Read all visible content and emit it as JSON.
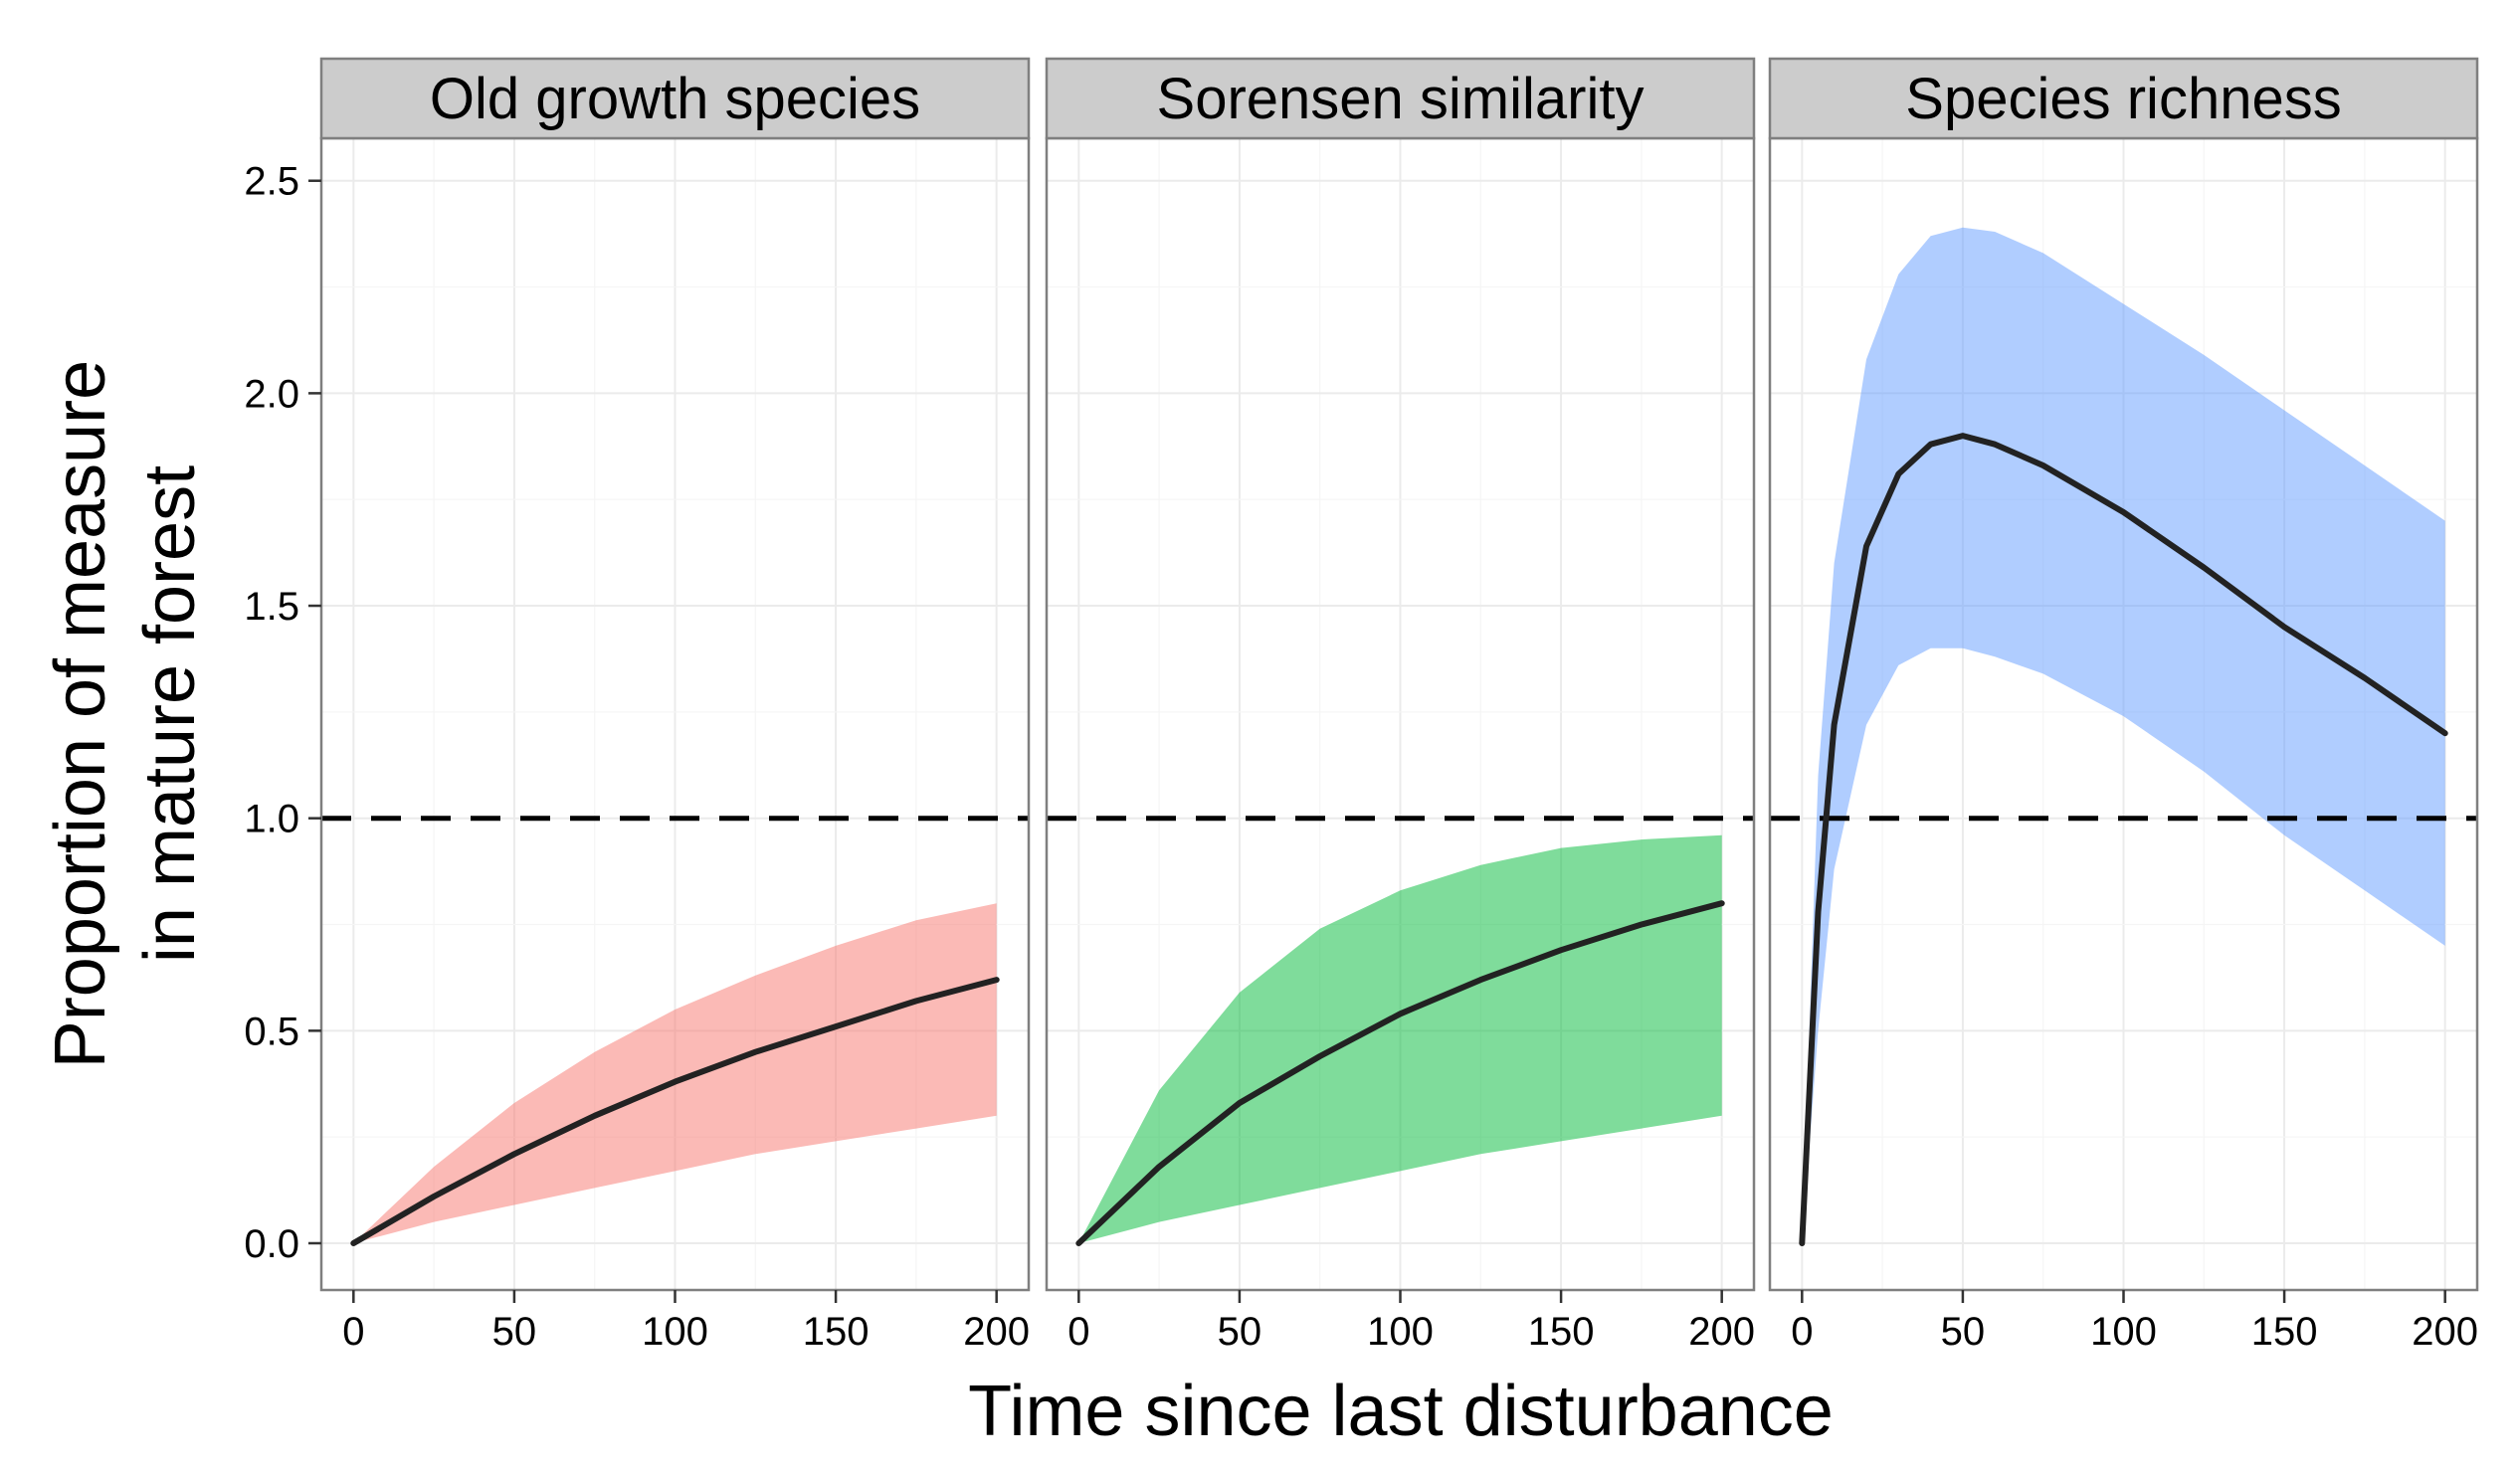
{
  "chart_data": {
    "type": "area",
    "xlabel": "Time since last disturbance",
    "ylabel": [
      "Proportion of measure",
      "in mature forest"
    ],
    "xlim": [
      -10,
      210
    ],
    "ylim": [
      -0.11,
      2.6
    ],
    "x_ticks": [
      0,
      50,
      100,
      150,
      200
    ],
    "y_ticks": [
      0.0,
      0.5,
      1.0,
      1.5,
      2.0,
      2.5
    ],
    "y_tick_labels": [
      "0.0",
      "0.5",
      "1.0",
      "1.5",
      "2.0",
      "2.5"
    ],
    "reference_line": {
      "y": 1.0,
      "style": "dashed",
      "color": "#000000"
    },
    "grid": true,
    "panels": [
      {
        "title": "Old growth species",
        "color": "#F8766D",
        "x": [
          0,
          25,
          50,
          75,
          100,
          125,
          150,
          175,
          200
        ],
        "mean": [
          0.0,
          0.11,
          0.21,
          0.3,
          0.38,
          0.45,
          0.51,
          0.57,
          0.62
        ],
        "lower": [
          0.0,
          0.05,
          0.09,
          0.13,
          0.17,
          0.21,
          0.24,
          0.27,
          0.3
        ],
        "upper": [
          0.0,
          0.18,
          0.33,
          0.45,
          0.55,
          0.63,
          0.7,
          0.76,
          0.8
        ]
      },
      {
        "title": "Sorensen similarity",
        "color": "#00BA38",
        "x": [
          0,
          25,
          50,
          75,
          100,
          125,
          150,
          175,
          200
        ],
        "mean": [
          0.0,
          0.18,
          0.33,
          0.44,
          0.54,
          0.62,
          0.69,
          0.75,
          0.8
        ],
        "lower": [
          0.0,
          0.05,
          0.09,
          0.13,
          0.17,
          0.21,
          0.24,
          0.27,
          0.3
        ],
        "upper": [
          0.0,
          0.36,
          0.59,
          0.74,
          0.83,
          0.89,
          0.93,
          0.95,
          0.96
        ]
      },
      {
        "title": "Species richness",
        "color": "#619CFF",
        "x": [
          0,
          5,
          10,
          20,
          30,
          40,
          50,
          60,
          75,
          100,
          125,
          150,
          175,
          200
        ],
        "mean": [
          0.0,
          0.78,
          1.22,
          1.64,
          1.81,
          1.88,
          1.9,
          1.88,
          1.83,
          1.72,
          1.59,
          1.45,
          1.33,
          1.2
        ],
        "lower": [
          0.0,
          0.5,
          0.88,
          1.22,
          1.36,
          1.4,
          1.4,
          1.38,
          1.34,
          1.24,
          1.11,
          0.96,
          0.83,
          0.7
        ],
        "upper": [
          0.0,
          1.1,
          1.6,
          2.08,
          2.28,
          2.37,
          2.39,
          2.38,
          2.33,
          2.21,
          2.09,
          1.96,
          1.83,
          1.7
        ]
      }
    ]
  }
}
